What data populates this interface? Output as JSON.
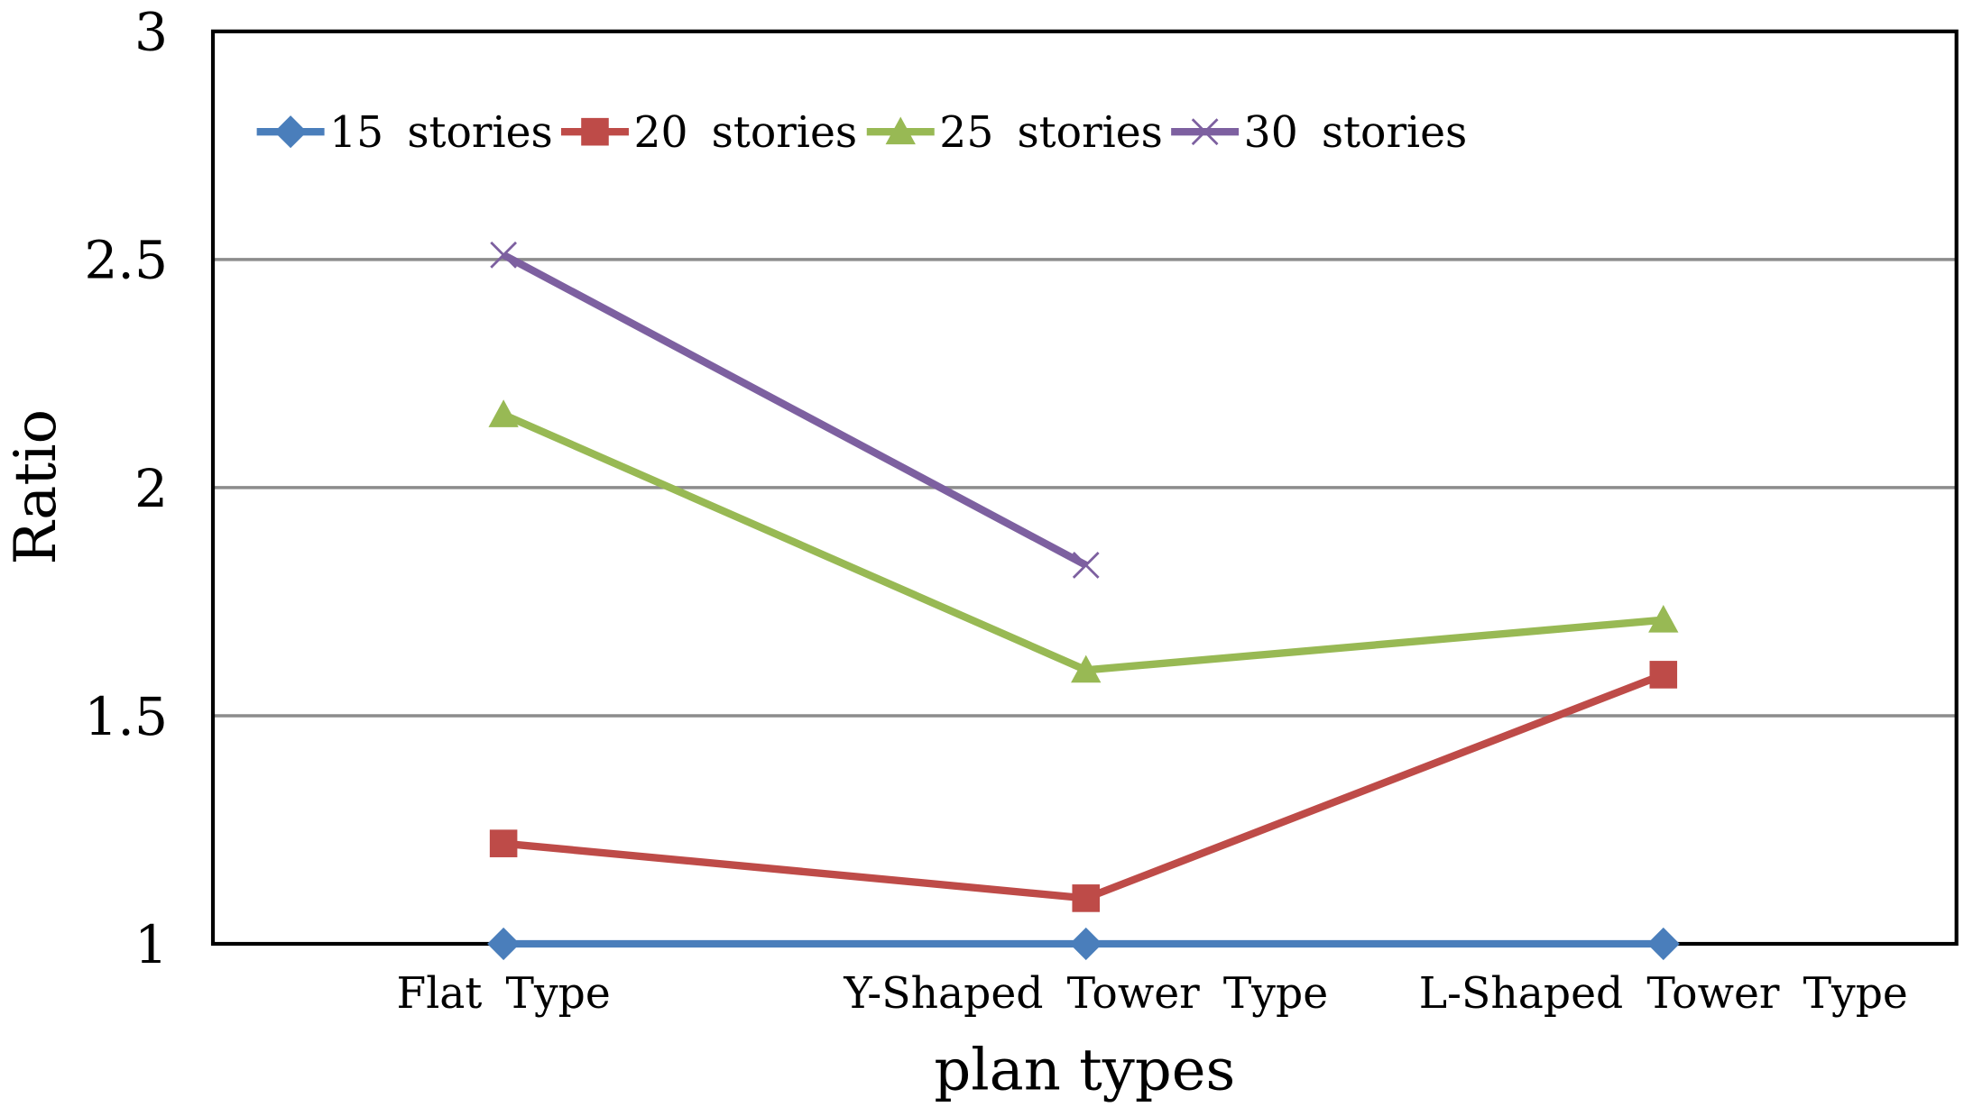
{
  "chart_data": {
    "type": "line",
    "title": "",
    "xlabel": "plan types",
    "ylabel": "Ratio",
    "categories": [
      "Flat Type",
      "Y-Shaped Tower Type",
      "L-Shaped Tower Type"
    ],
    "ylim": [
      1,
      3
    ],
    "yticks": [
      "1",
      "1.5",
      "2",
      "2.5",
      "3"
    ],
    "grid": true,
    "legend_position": "top-left",
    "series": [
      {
        "name": "15 stories",
        "values": [
          1.0,
          1.0,
          1.0
        ],
        "color": "#4a7ebb",
        "marker": "diamond"
      },
      {
        "name": "20 stories",
        "values": [
          1.22,
          1.1,
          1.59
        ],
        "color": "#be4b48",
        "marker": "square"
      },
      {
        "name": "25 stories",
        "values": [
          2.16,
          1.6,
          1.71
        ],
        "color": "#98b954",
        "marker": "triangle"
      },
      {
        "name": "30 stories",
        "values": [
          2.51,
          1.83,
          null
        ],
        "color": "#7d60a0",
        "marker": "x"
      }
    ]
  }
}
